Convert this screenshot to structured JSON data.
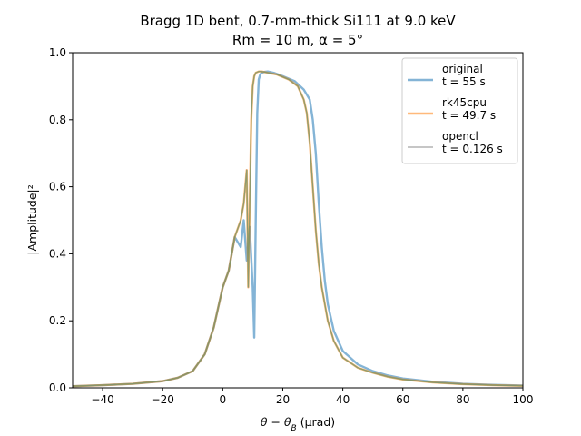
{
  "chart_data": {
    "type": "line",
    "title_line1": "Bragg 1D bent, 0.7-mm-thick Si111 at 9.0 keV",
    "title_line2": "Rm = 10 m, α = 5°",
    "xlabel": "θ − θ",
    "xlabel_sub": "B",
    "xlabel_unit": " (µrad)",
    "ylabel": "|Amplitude|²",
    "xlim": [
      -50,
      100
    ],
    "ylim": [
      0,
      1.0
    ],
    "xticks": [
      -40,
      -20,
      0,
      20,
      40,
      60,
      80,
      100
    ],
    "yticks": [
      0.0,
      0.2,
      0.4,
      0.6,
      0.8,
      1.0
    ],
    "xtick_labels": [
      "−40",
      "−20",
      "0",
      "20",
      "40",
      "60",
      "80",
      "100"
    ],
    "ytick_labels": [
      "0.0",
      "0.2",
      "0.4",
      "0.6",
      "0.8",
      "1.0"
    ],
    "legend_position": "top-right",
    "series": [
      {
        "name": "original",
        "legend_line2": "t = 55 s",
        "color": "#1f77b4",
        "opacity": 0.55,
        "x": [
          -50,
          -40,
          -30,
          -20,
          -15,
          -10,
          -6,
          -3,
          0,
          2,
          4,
          6,
          7,
          8,
          9,
          10,
          10.5,
          11,
          11.5,
          12,
          12.5,
          13,
          14,
          15,
          17,
          20,
          24,
          27,
          29,
          30,
          31,
          32,
          33,
          34,
          35,
          37,
          40,
          45,
          50,
          55,
          60,
          70,
          80,
          90,
          100
        ],
        "y": [
          0.005,
          0.008,
          0.012,
          0.02,
          0.03,
          0.05,
          0.1,
          0.18,
          0.3,
          0.35,
          0.45,
          0.42,
          0.5,
          0.38,
          0.48,
          0.3,
          0.15,
          0.5,
          0.82,
          0.92,
          0.935,
          0.94,
          0.943,
          0.944,
          0.94,
          0.93,
          0.915,
          0.89,
          0.86,
          0.8,
          0.7,
          0.55,
          0.42,
          0.32,
          0.25,
          0.17,
          0.11,
          0.07,
          0.05,
          0.037,
          0.028,
          0.018,
          0.012,
          0.009,
          0.007
        ]
      },
      {
        "name": "rk45cpu",
        "legend_line2": "t = 49.7 s",
        "color": "#ff7f0e",
        "opacity": 0.55,
        "x": [
          -50,
          -40,
          -30,
          -20,
          -15,
          -10,
          -6,
          -3,
          0,
          2,
          4,
          6,
          7,
          8,
          8.5,
          9,
          9.5,
          10,
          10.5,
          11,
          12,
          13,
          15,
          18,
          22,
          25,
          27,
          28,
          29,
          30,
          31,
          32,
          33,
          35,
          37,
          40,
          45,
          50,
          55,
          60,
          70,
          80,
          90,
          100
        ],
        "y": [
          0.005,
          0.008,
          0.012,
          0.02,
          0.03,
          0.05,
          0.1,
          0.18,
          0.3,
          0.35,
          0.45,
          0.5,
          0.55,
          0.65,
          0.3,
          0.55,
          0.8,
          0.9,
          0.93,
          0.94,
          0.944,
          0.944,
          0.94,
          0.935,
          0.92,
          0.9,
          0.86,
          0.82,
          0.73,
          0.6,
          0.47,
          0.37,
          0.3,
          0.2,
          0.14,
          0.09,
          0.06,
          0.045,
          0.033,
          0.025,
          0.016,
          0.011,
          0.008,
          0.006
        ]
      },
      {
        "name": "opencl",
        "legend_line2": "t = 0.126 s",
        "color": "#7f7f7f",
        "opacity": 0.7,
        "x": [
          -50,
          -40,
          -30,
          -20,
          -15,
          -10,
          -6,
          -3,
          0,
          2,
          4,
          6,
          7,
          8,
          8.5,
          9,
          9.5,
          10,
          10.5,
          11,
          12,
          13,
          15,
          18,
          22,
          25,
          27,
          28,
          29,
          30,
          31,
          32,
          33,
          35,
          37,
          40,
          45,
          50,
          55,
          60,
          70,
          80,
          90,
          100
        ],
        "y": [
          0.005,
          0.008,
          0.012,
          0.02,
          0.03,
          0.05,
          0.1,
          0.18,
          0.3,
          0.35,
          0.45,
          0.5,
          0.55,
          0.65,
          0.3,
          0.55,
          0.8,
          0.9,
          0.93,
          0.94,
          0.944,
          0.944,
          0.94,
          0.935,
          0.92,
          0.9,
          0.86,
          0.82,
          0.73,
          0.6,
          0.47,
          0.37,
          0.3,
          0.2,
          0.14,
          0.09,
          0.06,
          0.045,
          0.033,
          0.025,
          0.016,
          0.011,
          0.008,
          0.006
        ]
      }
    ],
    "green_overlay_color": "#6ab04c"
  }
}
